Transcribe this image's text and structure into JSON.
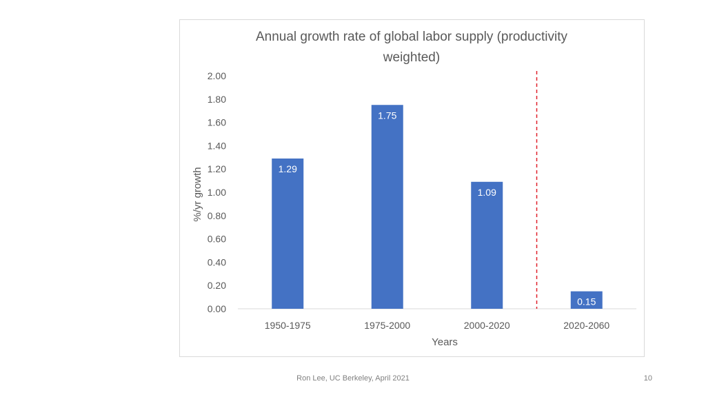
{
  "chart_data": {
    "type": "bar",
    "title": "Annual growth rate of global labor supply (productivity weighted)",
    "title_lines": [
      "Annual growth rate of global labor supply (productivity",
      "weighted)"
    ],
    "xlabel": "Years",
    "ylabel": "%/yr growth",
    "categories": [
      "1950-1975",
      "1975-2000",
      "2000-2020",
      "2020-2060"
    ],
    "values": [
      1.29,
      1.75,
      1.09,
      0.15
    ],
    "data_labels": [
      "1.29",
      "1.75",
      "1.09",
      "0.15"
    ],
    "ylim": [
      0,
      2.0
    ],
    "yticks": [
      "0.00",
      "0.20",
      "0.40",
      "0.60",
      "0.80",
      "1.00",
      "1.20",
      "1.40",
      "1.60",
      "1.80",
      "2.00"
    ],
    "grid": false,
    "legend": "none",
    "bar_color": "#4472c4",
    "label_color": "#ffffff",
    "divider": {
      "between_categories": [
        "2000-2020",
        "2020-2060"
      ],
      "style": "dashed",
      "color": "#e0202a"
    }
  },
  "footer": {
    "credit": "Ron Lee, UC Berkeley, April 2021",
    "page_number": "10"
  }
}
